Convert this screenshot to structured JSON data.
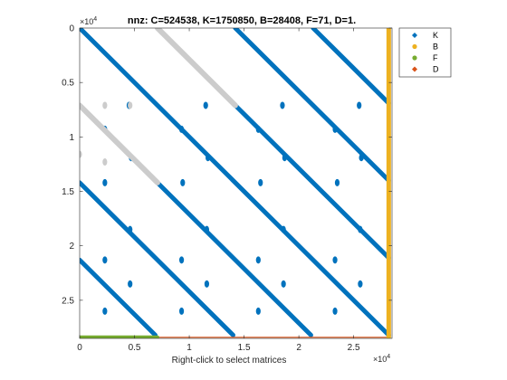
{
  "chart_data": {
    "type": "scatter",
    "title": "nnz: C=524538, K=1750850, B=28408, F=71, D=1.",
    "xlabel": "Right-click to select matrices",
    "x_exponent_label": "×10",
    "x_exponent_power": "4",
    "y_exponent_label": "×10",
    "y_exponent_power": "4",
    "xlim": [
      0,
      28500
    ],
    "ylim": [
      28500,
      0
    ],
    "y_reversed": true,
    "x_ticks": [
      0,
      5000,
      10000,
      15000,
      20000,
      25000
    ],
    "x_tick_labels": [
      "0",
      "0.5",
      "1",
      "1.5",
      "2",
      "2.5"
    ],
    "y_ticks": [
      0,
      5000,
      10000,
      15000,
      20000,
      25000
    ],
    "y_tick_labels": [
      "0",
      "0.5",
      "1",
      "1.5",
      "2",
      "2.5"
    ],
    "legend_position": "outside-top-right",
    "series": [
      {
        "name": "K",
        "color": "#0072BD",
        "marker": "diamond",
        "lines": [
          [
            [
              0,
              0
            ],
            [
              28200,
              28200
            ]
          ],
          [
            [
              7100,
              0
            ],
            [
              28200,
              21100
            ]
          ],
          [
            [
              14200,
              0
            ],
            [
              28200,
              14000
            ]
          ],
          [
            [
              21300,
              0
            ],
            [
              28200,
              6900
            ]
          ],
          [
            [
              0,
              7100
            ],
            [
              21100,
              28200
            ]
          ],
          [
            [
              0,
              14200
            ],
            [
              14000,
              28200
            ]
          ],
          [
            [
              0,
              21300
            ],
            [
              6900,
              28200
            ]
          ]
        ],
        "blobs": [
          [
            4500,
            7100
          ],
          [
            11500,
            7100
          ],
          [
            18500,
            7100
          ],
          [
            25500,
            7100
          ],
          [
            2300,
            9300
          ],
          [
            9300,
            9300
          ],
          [
            16300,
            9300
          ],
          [
            23300,
            9300
          ],
          [
            4700,
            11900
          ],
          [
            11700,
            11900
          ],
          [
            18700,
            11900
          ],
          [
            25700,
            11900
          ],
          [
            2300,
            14200
          ],
          [
            9400,
            14200
          ],
          [
            16500,
            14200
          ],
          [
            23500,
            14200
          ],
          [
            4600,
            18500
          ],
          [
            11600,
            18500
          ],
          [
            18600,
            18500
          ],
          [
            25600,
            18500
          ],
          [
            2300,
            21300
          ],
          [
            9300,
            21300
          ],
          [
            16300,
            21300
          ],
          [
            23300,
            21300
          ],
          [
            4600,
            23500
          ],
          [
            11600,
            23500
          ],
          [
            18600,
            23500
          ],
          [
            25600,
            23500
          ],
          [
            2300,
            26000
          ],
          [
            9300,
            26000
          ],
          [
            16300,
            26000
          ],
          [
            23300,
            26000
          ]
        ]
      },
      {
        "name": "B",
        "color": "#EDB120",
        "marker": "circle",
        "lines": [
          [
            [
              28200,
              0
            ],
            [
              28200,
              28400
            ]
          ]
        ]
      },
      {
        "name": "F",
        "color": "#77AC30",
        "marker": "circle",
        "lines": [
          [
            [
              0,
              28400
            ],
            [
              7100,
              28400
            ]
          ]
        ]
      },
      {
        "name": "D",
        "color": "#D95319",
        "marker": "diamond",
        "lines": [
          [
            [
              0,
              28400
            ],
            [
              28200,
              28400
            ]
          ]
        ]
      }
    ],
    "overlay": {
      "color": "#CCCCCC",
      "lines": [
        [
          [
            7100,
            0
          ],
          [
            14200,
            7100
          ]
        ],
        [
          [
            0,
            7100
          ],
          [
            7100,
            14200
          ]
        ]
      ],
      "blobs": [
        [
          0,
          11600
        ],
        [
          2300,
          7100
        ],
        [
          4600,
          7100
        ],
        [
          2300,
          12300
        ]
      ]
    }
  }
}
